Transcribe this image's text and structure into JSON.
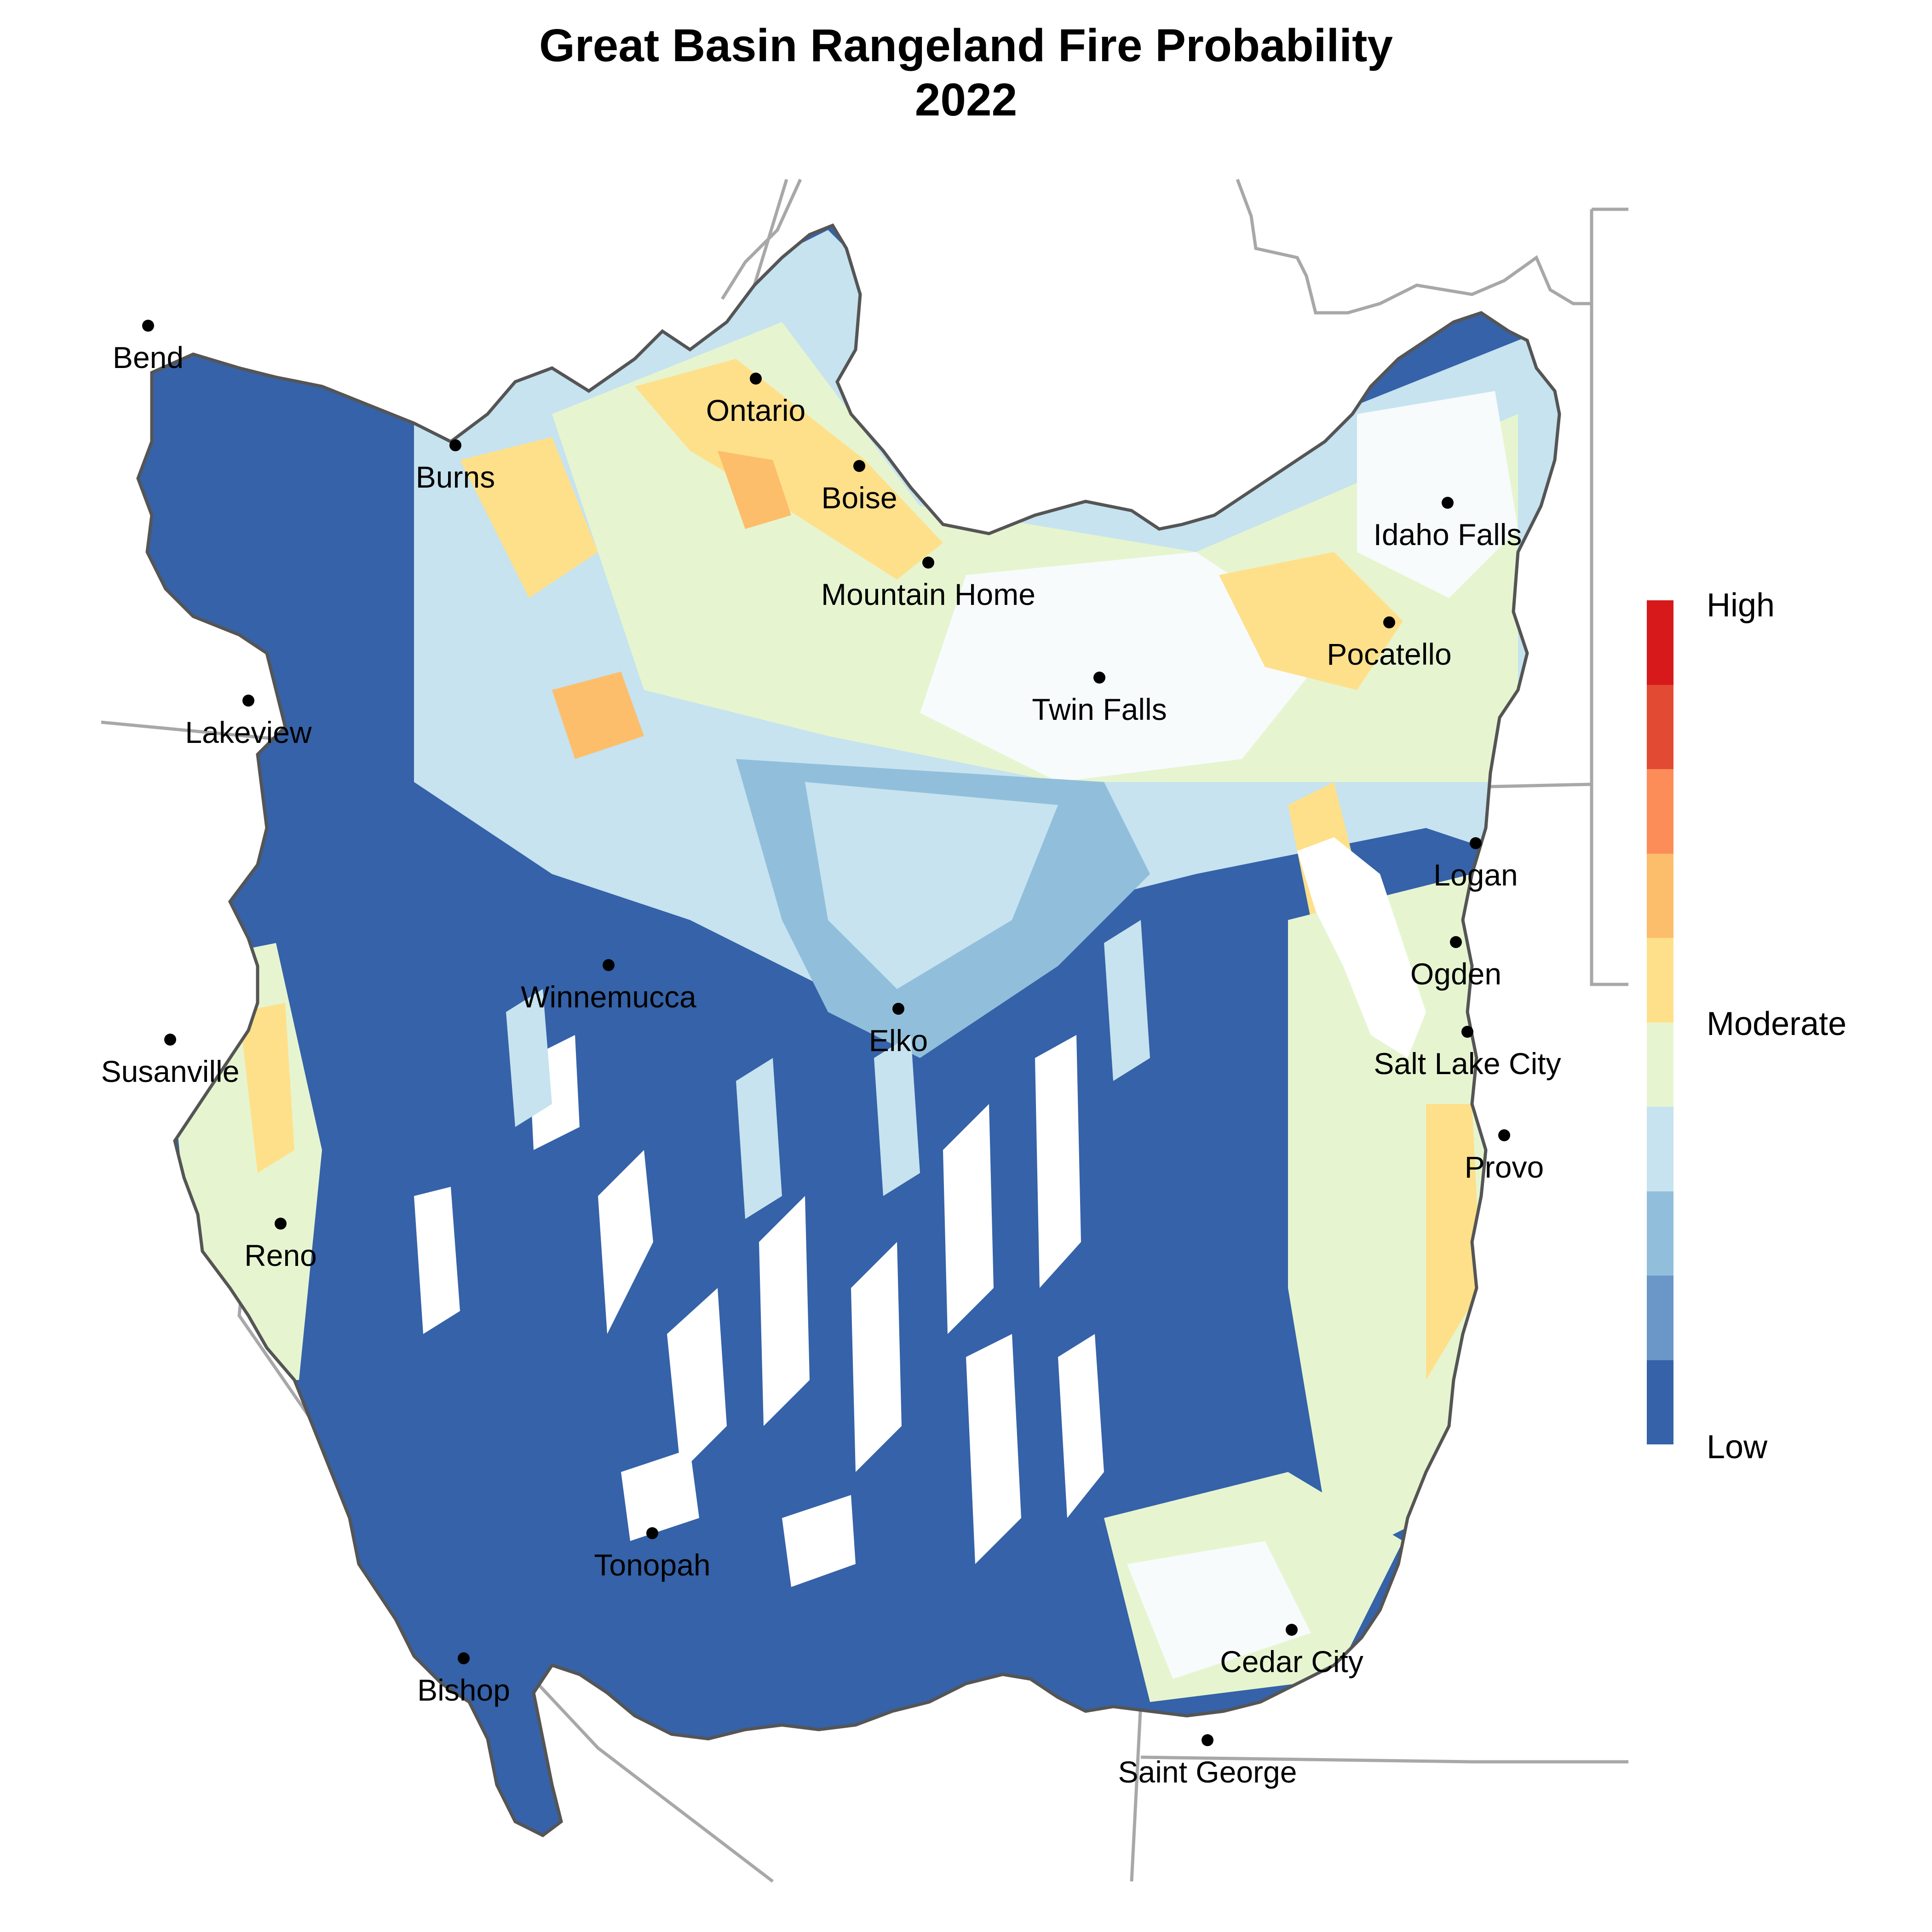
{
  "title": {
    "line1": "Great Basin Rangeland Fire Probability",
    "line2": "2022"
  },
  "legend": {
    "high": "High",
    "moderate": "Moderate",
    "low": "Low",
    "colors": [
      "#d7191c",
      "#e34a33",
      "#fc8d59",
      "#fdbe6b",
      "#fee08b",
      "#e6f5d0",
      "#c6e3ef",
      "#91bfdb",
      "#6a96c8",
      "#3562a8"
    ]
  },
  "colors": {
    "low": "#3562a8",
    "low_mid": "#91bfdb",
    "light": "#c6e3ef",
    "pale": "#e6f5d0",
    "moderate": "#fee08b",
    "orange": "#fdbe6b",
    "border": "#555555",
    "state_lines": "#a8a8a8"
  },
  "cities": [
    {
      "name": "Bend"
    },
    {
      "name": "Burns"
    },
    {
      "name": "Ontario"
    },
    {
      "name": "Boise"
    },
    {
      "name": "Mountain Home"
    },
    {
      "name": "Idaho Falls"
    },
    {
      "name": "Pocatello"
    },
    {
      "name": "Twin Falls"
    },
    {
      "name": "Lakeview"
    },
    {
      "name": "Logan"
    },
    {
      "name": "Ogden"
    },
    {
      "name": "Salt Lake City"
    },
    {
      "name": "Winnemucca"
    },
    {
      "name": "Elko"
    },
    {
      "name": "Susanville"
    },
    {
      "name": "Provo"
    },
    {
      "name": "Reno"
    },
    {
      "name": "Tonopah"
    },
    {
      "name": "Cedar City"
    },
    {
      "name": "Bishop"
    },
    {
      "name": "Saint George"
    }
  ]
}
